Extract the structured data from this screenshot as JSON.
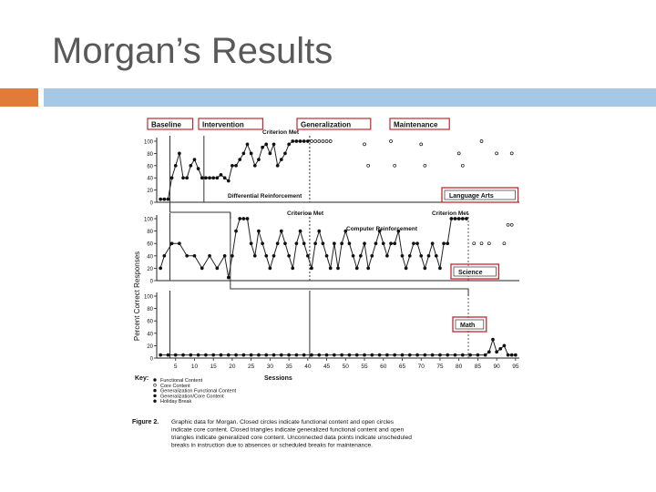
{
  "slide": {
    "title": "Morgan’s Results",
    "accent_color": "#e07b39",
    "bar_color": "#a6c8e4"
  },
  "chart_data": {
    "type": "line",
    "phases": [
      "Baseline",
      "Intervention",
      "Generalization",
      "Maintenance"
    ],
    "ylabel": "Percent Correct Responses",
    "xlabel": "Sessions",
    "x_ticks": [
      5,
      10,
      15,
      20,
      25,
      30,
      35,
      40,
      45,
      50,
      55,
      60,
      65,
      70,
      75,
      80,
      85,
      90,
      95
    ],
    "y_ticks": [
      0,
      20,
      40,
      60,
      80,
      100
    ],
    "xlim": [
      0,
      96
    ],
    "ylim": [
      0,
      100
    ],
    "highlight_color": "#c0282d",
    "panels": [
      {
        "name": "Language Arts",
        "phase_change_sessions": [
          3,
          12,
          40
        ],
        "annotations": [
          "Criterion Met",
          "Differential Reinforcement"
        ],
        "series": [
          {
            "marker": "filled",
            "x": [
              1,
              2,
              3,
              4,
              5,
              6,
              7,
              8,
              9,
              10,
              11,
              12,
              13,
              14,
              15,
              16,
              17,
              18,
              19,
              20,
              21,
              22,
              23,
              24,
              25,
              26,
              27,
              28,
              29,
              30,
              31,
              32,
              33,
              34,
              35,
              36,
              37,
              38,
              39,
              40
            ],
            "y": [
              5,
              5,
              5,
              40,
              60,
              80,
              40,
              40,
              60,
              70,
              55,
              40,
              40,
              40,
              40,
              40,
              45,
              40,
              35,
              60,
              60,
              70,
              80,
              95,
              80,
              60,
              70,
              90,
              95,
              80,
              95,
              60,
              70,
              80,
              95,
              100,
              100,
              100,
              100,
              100
            ]
          },
          {
            "marker": "open",
            "x": [
              41,
              42,
              43,
              44,
              45,
              46,
              55,
              56,
              62,
              63,
              70,
              71,
              80,
              81,
              86,
              90,
              94
            ],
            "y": [
              100,
              100,
              100,
              100,
              100,
              100,
              95,
              60,
              100,
              60,
              95,
              60,
              80,
              60,
              100,
              80,
              80
            ]
          }
        ]
      },
      {
        "name": "Science",
        "phase_change_sessions": [
          3,
          19,
          40,
          82
        ],
        "annotations": [
          "Criterion Met",
          "Computer Reinforcement",
          "Criterion Met"
        ],
        "series": [
          {
            "marker": "filled",
            "x": [
              1,
              2,
              4,
              6,
              8,
              10,
              12,
              14,
              16,
              18,
              19,
              20,
              21,
              22,
              23,
              24,
              25,
              26,
              27,
              28,
              29,
              30,
              31,
              32,
              33,
              34,
              35,
              36,
              37,
              38,
              39,
              40,
              41,
              42,
              43,
              44,
              45,
              46,
              47,
              48,
              49,
              50,
              51,
              52,
              53,
              54,
              55,
              56,
              57,
              58,
              59,
              60,
              61,
              62,
              63,
              64,
              65,
              66,
              67,
              68,
              69,
              70,
              71,
              72,
              73,
              74,
              75,
              76,
              77,
              78,
              79,
              80,
              81,
              82
            ],
            "y": [
              20,
              40,
              60,
              60,
              40,
              40,
              20,
              40,
              20,
              40,
              5,
              40,
              80,
              100,
              100,
              100,
              60,
              40,
              80,
              60,
              40,
              20,
              40,
              60,
              80,
              60,
              40,
              20,
              60,
              80,
              60,
              40,
              20,
              60,
              80,
              60,
              40,
              20,
              60,
              20,
              60,
              80,
              60,
              40,
              20,
              40,
              60,
              20,
              40,
              60,
              80,
              60,
              40,
              60,
              60,
              80,
              40,
              20,
              40,
              60,
              60,
              40,
              20,
              40,
              60,
              40,
              20,
              60,
              60,
              100,
              100,
              100,
              100,
              100
            ]
          },
          {
            "marker": "open",
            "x": [
              84,
              86,
              88,
              92,
              93,
              94
            ],
            "y": [
              60,
              60,
              60,
              60,
              90,
              90
            ]
          }
        ]
      },
      {
        "name": "Math",
        "phase_change_sessions": [
          3,
          40,
          82
        ],
        "annotations": [],
        "series": [
          {
            "marker": "filled",
            "x": [
              1,
              3,
              5,
              7,
              9,
              11,
              13,
              15,
              17,
              19,
              21,
              23,
              25,
              27,
              29,
              31,
              33,
              35,
              37,
              39,
              41,
              43,
              45,
              47,
              49,
              51,
              53,
              55,
              57,
              59,
              61,
              63,
              65,
              67,
              69,
              71,
              73,
              75,
              77,
              79,
              81,
              83,
              85,
              87,
              88,
              89,
              90,
              91,
              92,
              93,
              94,
              95
            ],
            "y": [
              5,
              5,
              5,
              5,
              5,
              5,
              5,
              5,
              5,
              5,
              5,
              5,
              5,
              5,
              5,
              5,
              5,
              5,
              5,
              5,
              5,
              5,
              5,
              5,
              5,
              5,
              5,
              5,
              5,
              5,
              5,
              5,
              5,
              5,
              5,
              5,
              5,
              5,
              5,
              5,
              5,
              5,
              5,
              5,
              10,
              30,
              10,
              15,
              20,
              5,
              5,
              5
            ]
          }
        ]
      }
    ],
    "key_label": "Key:",
    "key_items": [
      "Functional Content",
      "Core Content",
      "Generalization Functional Content",
      "Generalization/Core Content",
      "Holiday Break"
    ],
    "caption_label": "Figure 2.",
    "caption_text": "Graphic data for Morgan. Closed circles indicate functional content and open circles indicate core content. Closed triangles indicate generalized functional content and open triangles indicate generalized core content. Unconnected data points indicate unscheduled breaks in instruction due to absences or scheduled breaks for maintenance."
  }
}
